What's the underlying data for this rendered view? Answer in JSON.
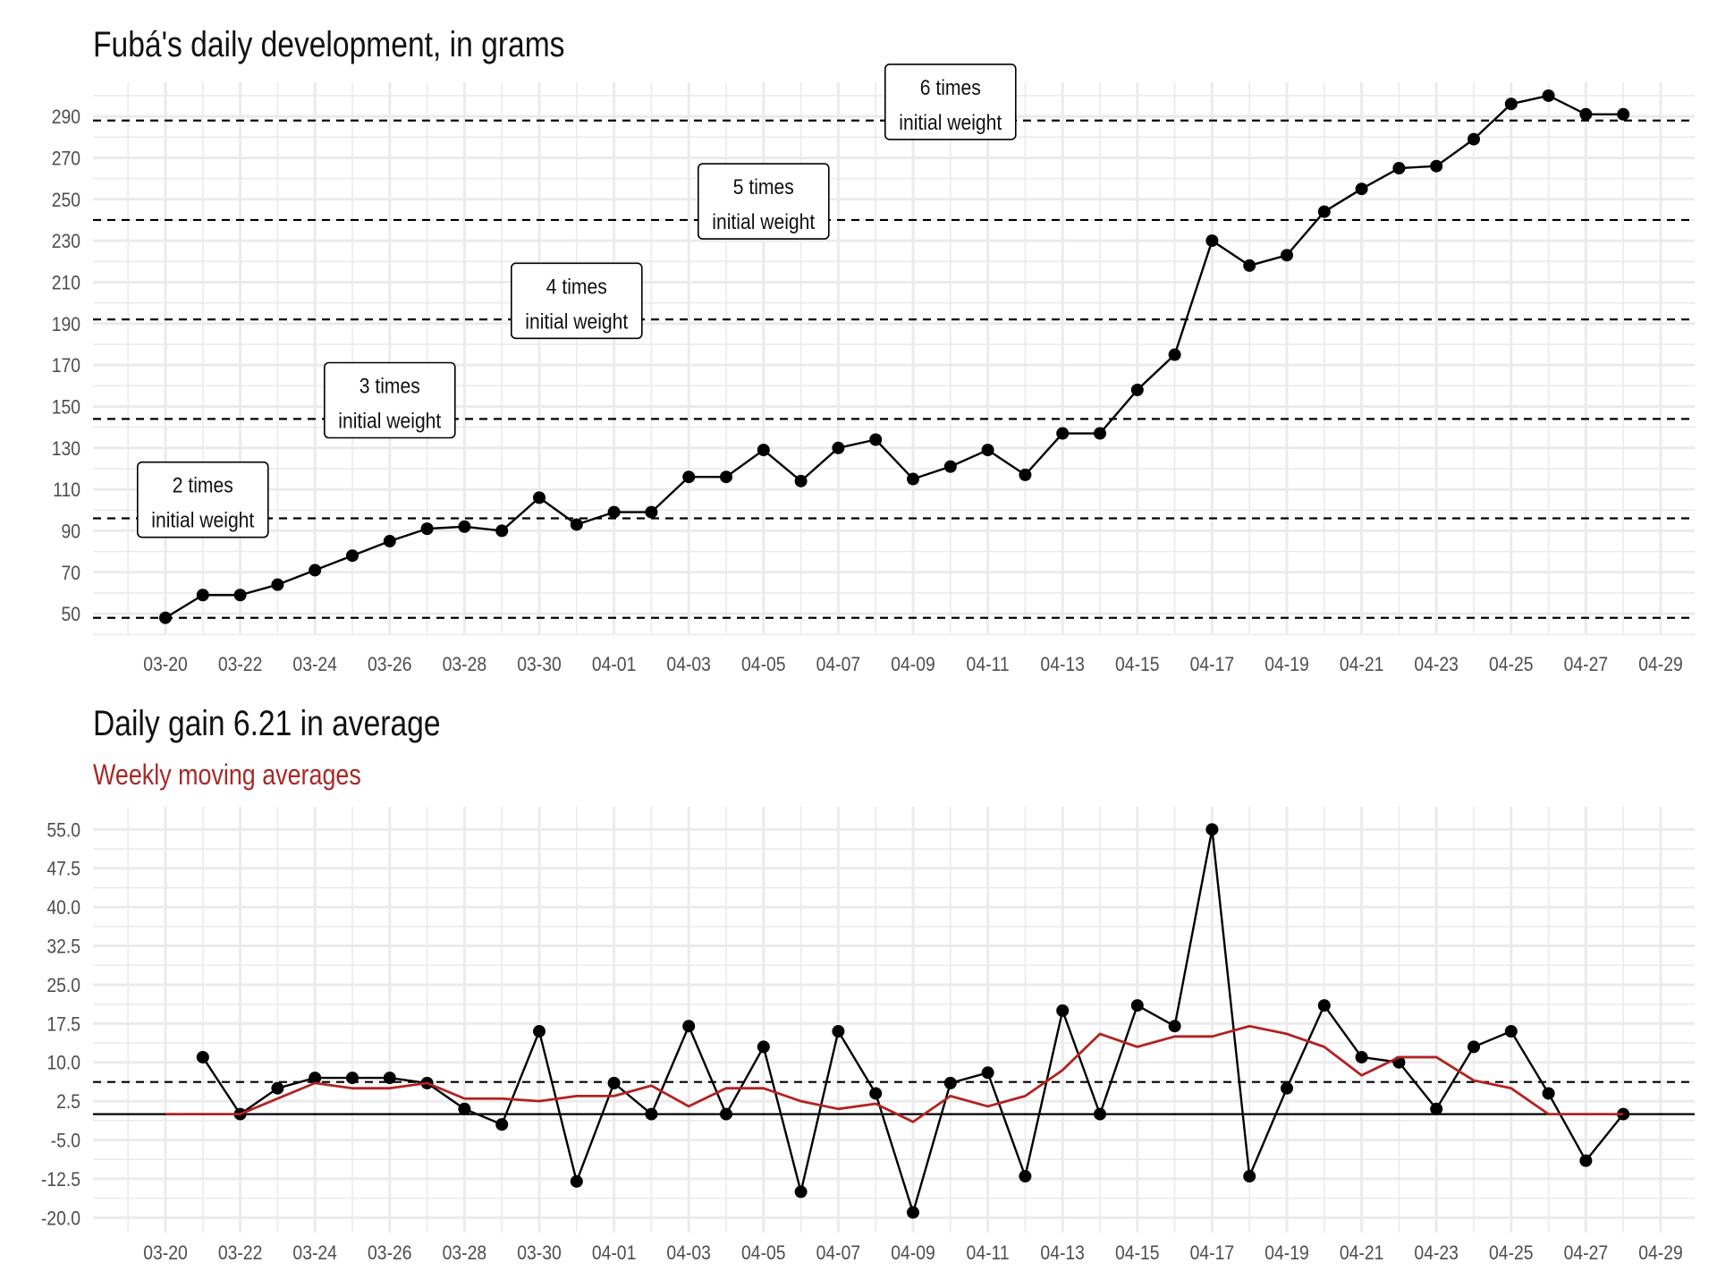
{
  "colors": {
    "background": "#ffffff",
    "grid": "#ebebeb",
    "line": "#000000",
    "reference": "#000000",
    "moving_average": "#b22222",
    "text": "#4d4d4d",
    "subtitle": "#a52a2a"
  },
  "chart_data": [
    {
      "type": "line",
      "title": "Fubá's daily development, in grams",
      "x": [
        "03-20",
        "03-21",
        "03-22",
        "03-23",
        "03-24",
        "03-25",
        "03-26",
        "03-27",
        "03-28",
        "03-29",
        "03-30",
        "03-31",
        "04-01",
        "04-02",
        "04-03",
        "04-04",
        "04-05",
        "04-06",
        "04-07",
        "04-08",
        "04-09",
        "04-10",
        "04-11",
        "04-12",
        "04-13",
        "04-14",
        "04-15",
        "04-16",
        "04-17",
        "04-18",
        "04-19",
        "04-20",
        "04-21",
        "04-22",
        "04-23",
        "04-24",
        "04-25",
        "04-26",
        "04-27",
        "04-28"
      ],
      "series": [
        {
          "values": [
            48,
            59,
            59,
            64,
            71,
            78,
            85,
            91,
            92,
            90,
            106,
            93,
            99,
            99,
            116,
            116,
            129,
            114,
            130,
            134,
            115,
            121,
            129,
            117,
            137,
            137,
            158,
            175,
            230,
            218,
            223,
            244,
            255,
            265,
            266,
            279,
            296,
            300,
            291,
            291
          ]
        }
      ],
      "x_ticks": [
        "03-20",
        "03-22",
        "03-24",
        "03-26",
        "03-28",
        "03-30",
        "04-01",
        "04-03",
        "04-05",
        "04-07",
        "04-09",
        "04-11",
        "04-13",
        "04-15",
        "04-17",
        "04-19",
        "04-21",
        "04-23",
        "04-25",
        "04-27",
        "04-29"
      ],
      "y_ticks": [
        50,
        70,
        90,
        110,
        130,
        150,
        170,
        190,
        210,
        230,
        250,
        270,
        290
      ],
      "ylim": [
        44,
        303
      ],
      "reference_lines": [
        48,
        96,
        144,
        192,
        240,
        288
      ],
      "annotations": [
        {
          "line1": "2 times",
          "line2": "initial weight",
          "x": "03-21",
          "y": 105
        },
        {
          "line1": "3 times",
          "line2": "initial weight",
          "x": "03-26",
          "y": 153
        },
        {
          "line1": "4 times",
          "line2": "initial weight",
          "x": "03-31",
          "y": 201
        },
        {
          "line1": "5 times",
          "line2": "initial weight",
          "x": "04-05",
          "y": 249
        },
        {
          "line1": "6 times",
          "line2": "initial weight",
          "x": "04-10",
          "y": 297
        }
      ],
      "grid": true
    },
    {
      "type": "line",
      "title": "Daily gain 6.21 in average",
      "subtitle": "Weekly moving averages",
      "x": [
        "03-20",
        "03-21",
        "03-22",
        "03-23",
        "03-24",
        "03-25",
        "03-26",
        "03-27",
        "03-28",
        "03-29",
        "03-30",
        "03-31",
        "04-01",
        "04-02",
        "04-03",
        "04-04",
        "04-05",
        "04-06",
        "04-07",
        "04-08",
        "04-09",
        "04-10",
        "04-11",
        "04-12",
        "04-13",
        "04-14",
        "04-15",
        "04-16",
        "04-17",
        "04-18",
        "04-19",
        "04-20",
        "04-21",
        "04-22",
        "04-23",
        "04-24",
        "04-25",
        "04-26",
        "04-27",
        "04-28"
      ],
      "series": [
        {
          "values": [
            null,
            11,
            0,
            5,
            7,
            7,
            7,
            6,
            1,
            -2,
            16,
            -13,
            6,
            0,
            17,
            0,
            13,
            -15,
            16,
            4,
            -19,
            6,
            8,
            -12,
            20,
            0,
            21,
            17,
            55,
            -12,
            5,
            21,
            11,
            10,
            1,
            13,
            16,
            4,
            -9,
            0
          ]
        },
        {
          "values": [
            0,
            0,
            0,
            null,
            6,
            5,
            5,
            6,
            3,
            3,
            2.5,
            3.5,
            3.5,
            5.5,
            1.5,
            5,
            5,
            2.5,
            1,
            2,
            -1.5,
            3.5,
            1.5,
            3.5,
            8.5,
            15.5,
            13,
            15,
            15,
            17,
            15.5,
            13,
            7.5,
            11,
            11,
            6.5,
            5,
            0,
            0,
            0
          ]
        }
      ],
      "x_ticks": [
        "03-20",
        "03-22",
        "03-24",
        "03-26",
        "03-28",
        "03-30",
        "04-01",
        "04-03",
        "04-05",
        "04-07",
        "04-09",
        "04-11",
        "04-13",
        "04-15",
        "04-17",
        "04-19",
        "04-21",
        "04-23",
        "04-25",
        "04-27",
        "04-29"
      ],
      "y_ticks": [
        "-20.0",
        "-12.5",
        "-5.0",
        "2.5",
        "10.0",
        "17.5",
        "25.0",
        "32.5",
        "40.0",
        "47.5",
        "55.0"
      ],
      "ylim": [
        -21.5,
        58
      ],
      "reference_lines": [
        0,
        6.21
      ],
      "grid": true
    }
  ]
}
